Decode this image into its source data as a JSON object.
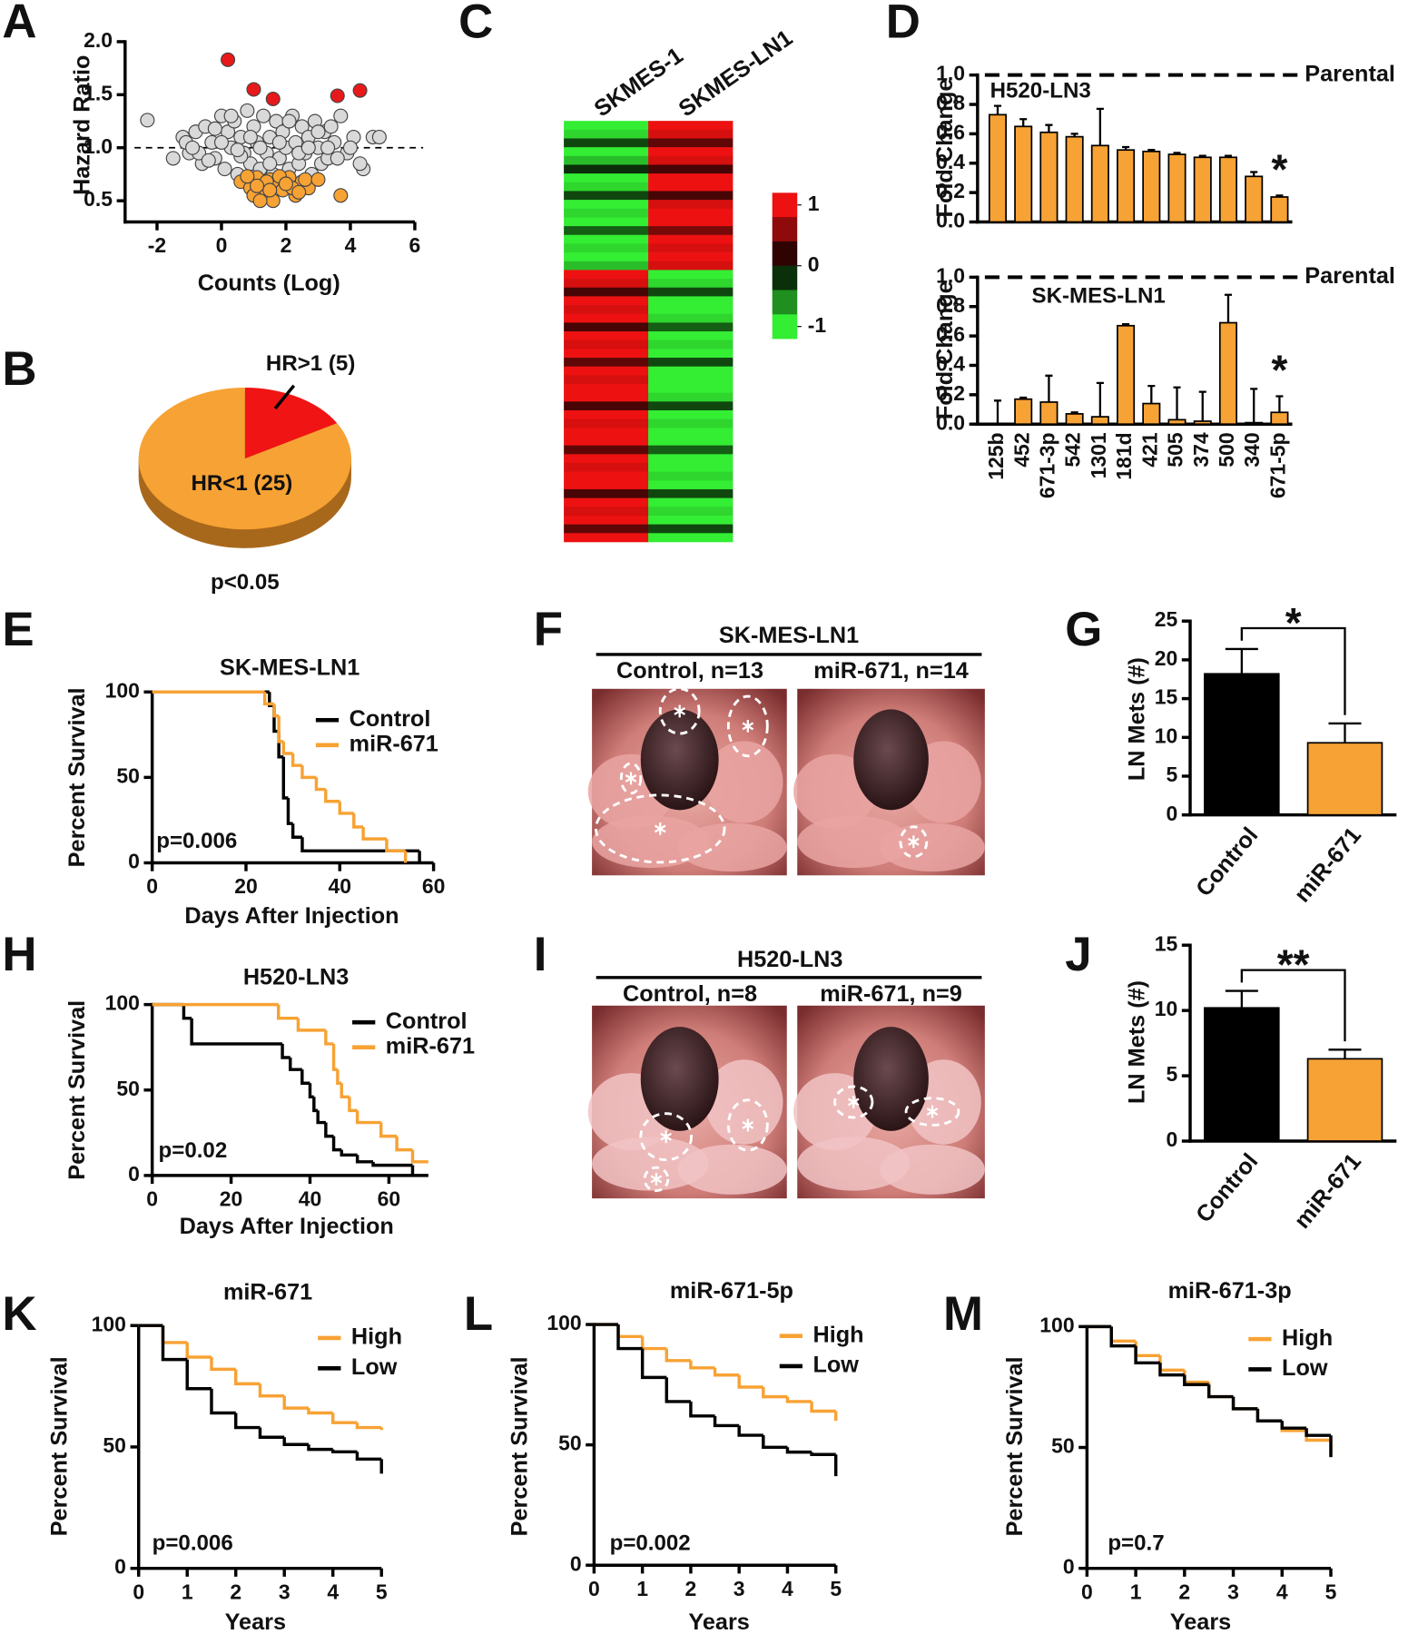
{
  "chart_data": [
    {
      "type": "scatter",
      "panel": "A",
      "xlabel": "Counts (Log)",
      "ylabel": "Hazard Ratio",
      "xlim": [
        -2.7,
        6
      ],
      "ylim": [
        0.3,
        2
      ],
      "xticks": [
        -2,
        0,
        2,
        4,
        6
      ],
      "yticks": [
        0.5,
        {
          "value": 1,
          "label": "1.0"
        },
        1.5,
        {
          "value": 2,
          "label": "2.0"
        }
      ],
      "hline": 1,
      "series": [
        {
          "color": "#d9d9d9",
          "x": [
            -2.3,
            -1.5,
            -1.2,
            -1.0,
            -0.8,
            -0.6,
            -0.5,
            -0.3,
            -0.2,
            0,
            0.1,
            0.2,
            0.3,
            0.4,
            0.5,
            0.6,
            0.7,
            0.8,
            0.9,
            1.0,
            1.1,
            1.2,
            1.3,
            1.4,
            1.5,
            1.6,
            1.7,
            1.8,
            1.9,
            2.0,
            2.1,
            2.2,
            2.3,
            2.4,
            2.5,
            2.6,
            2.7,
            2.8,
            2.9,
            3.0,
            3.1,
            3.2,
            3.3,
            3.4,
            3.5,
            3.7,
            3.9,
            4.1,
            4.4,
            4.7,
            4.9,
            -1.1,
            -0.7,
            -0.4,
            0.0,
            0.3,
            0.6,
            0.9,
            1.2,
            1.5,
            1.8,
            2.1,
            2.4,
            2.7,
            3.0,
            3.3,
            3.6,
            4.0,
            4.3,
            -0.9,
            -0.2,
            0.5
          ],
          "values": [
            1.26,
            0.9,
            1.1,
            0.95,
            1.15,
            0.85,
            1.2,
            1.05,
            0.9,
            1.3,
            0.8,
            1.15,
            1.0,
            1.25,
            0.75,
            1.1,
            0.95,
            1.35,
            0.85,
            1.2,
            1.05,
            0.8,
            1.3,
            0.95,
            1.1,
            0.75,
            1.25,
            0.9,
            1.15,
            1.0,
            0.8,
            1.3,
            1.05,
            0.85,
            1.2,
            0.95,
            1.1,
            0.75,
            1.25,
            1.0,
            0.85,
            1.15,
            0.9,
            1.2,
            1.05,
            1.3,
            0.95,
            1.1,
            0.8,
            1.1,
            1.1,
            1.05,
            0.95,
            0.88,
            1.05,
            1.3,
            0.92,
            1.1,
            1.0,
            0.85,
            1.05,
            1.25,
            0.95,
            1.0,
            1.15,
            1.0,
            0.9,
            1.0,
            0.85,
            1.0,
            1.18,
            0.98
          ]
        },
        {
          "color": "#e8191b",
          "x": [
            0.2,
            1.0,
            1.6,
            3.6,
            4.3
          ],
          "values": [
            1.83,
            1.55,
            1.46,
            1.49,
            1.54
          ]
        },
        {
          "color": "#f7a234",
          "x": [
            0.6,
            0.9,
            1.1,
            1.3,
            1.5,
            1.6,
            1.7,
            1.9,
            2.1,
            2.3,
            2.5,
            2.7,
            1.0,
            1.4,
            1.8,
            2.2,
            2.6,
            3.7,
            0.8,
            1.2,
            2.0,
            2.4,
            1.5,
            3.0,
            1.1
          ],
          "values": [
            0.68,
            0.62,
            0.72,
            0.6,
            0.7,
            0.5,
            0.65,
            0.6,
            0.72,
            0.55,
            0.68,
            0.62,
            0.55,
            0.68,
            0.73,
            0.62,
            0.7,
            0.55,
            0.73,
            0.5,
            0.66,
            0.58,
            0.6,
            0.7,
            0.64
          ]
        }
      ]
    },
    {
      "type": "pie",
      "panel": "B",
      "labels": [
        "HR>1 (5)",
        "HR<1 (25)"
      ],
      "values": [
        5,
        25
      ],
      "colors": [
        "#f01414",
        "#f7a234"
      ],
      "annotation": "p<0.05"
    },
    {
      "type": "heatmap",
      "panel": "C",
      "columns": [
        "SKMES-1",
        "SKMES-LN1"
      ],
      "colorlim": [
        -1.2,
        1.2
      ],
      "colorticks": [
        1,
        0,
        -1
      ],
      "rows": [
        [
          -1,
          1
        ],
        [
          -0.9,
          0.9
        ],
        [
          -0.3,
          0.4
        ],
        [
          -1,
          1
        ],
        [
          -0.8,
          0.9
        ],
        [
          -0.2,
          0.3
        ],
        [
          -1,
          1
        ],
        [
          -0.9,
          1
        ],
        [
          -0.3,
          0.3
        ],
        [
          -1,
          0.9
        ],
        [
          -0.9,
          1
        ],
        [
          -1,
          1
        ],
        [
          -0.4,
          0.5
        ],
        [
          -1,
          1
        ],
        [
          -0.9,
          0.9
        ],
        [
          -1,
          1
        ],
        [
          -0.8,
          0.9
        ],
        [
          1,
          -1
        ],
        [
          0.9,
          -0.9
        ],
        [
          0.3,
          -0.3
        ],
        [
          1,
          -1
        ],
        [
          0.9,
          -1
        ],
        [
          1,
          -0.9
        ],
        [
          0.3,
          -0.4
        ],
        [
          1,
          -1
        ],
        [
          0.9,
          -0.9
        ],
        [
          1,
          -1
        ],
        [
          0.4,
          -0.3
        ],
        [
          1,
          -1
        ],
        [
          0.9,
          -1
        ],
        [
          1,
          -1
        ],
        [
          1,
          -0.9
        ],
        [
          0.3,
          -0.3
        ],
        [
          1,
          -1
        ],
        [
          0.9,
          -0.9
        ],
        [
          1,
          -1
        ],
        [
          1,
          -1
        ],
        [
          0.4,
          -0.4
        ],
        [
          1,
          -1
        ],
        [
          0.9,
          -1
        ],
        [
          1,
          -0.9
        ],
        [
          1,
          -1
        ],
        [
          0.3,
          -0.3
        ],
        [
          1,
          -1
        ],
        [
          0.9,
          -0.9
        ],
        [
          1,
          -1
        ],
        [
          0.4,
          -0.3
        ],
        [
          1,
          -1
        ]
      ]
    },
    {
      "type": "bar",
      "panel": "D",
      "subtitle": "H520-LN3",
      "ylabel": "Fold Change",
      "color": "#f7a234",
      "values": [
        0.73,
        0.65,
        0.61,
        0.58,
        0.52,
        0.49,
        0.48,
        0.46,
        0.44,
        0.44,
        0.31,
        0.17
      ],
      "errors": [
        0.06,
        0.05,
        0.05,
        0.02,
        0.25,
        0.02,
        0.01,
        0.01,
        0.01,
        0.01,
        0.03,
        0.01
      ],
      "ylim": [
        0,
        1
      ],
      "yticks": [
        {
          "value": 0,
          "label": "0.0"
        },
        0.2,
        0.4,
        0.6,
        0.8,
        {
          "value": 1,
          "label": "1.0"
        }
      ],
      "reference": {
        "value": 1,
        "label": "Parental"
      },
      "annotation": "*"
    },
    {
      "type": "bar",
      "subtitle": "SK-MES-LN1",
      "ylabel": "Fold Change",
      "color": "#f7a234",
      "categories": [
        "125b",
        "452",
        "671-3p",
        "542",
        "1301",
        "181d",
        "421",
        "505",
        "374",
        "500",
        "340",
        "671-5p"
      ],
      "values": [
        0,
        0.17,
        0.15,
        0.07,
        0.05,
        0.67,
        0.14,
        0.03,
        0.02,
        0.69,
        0.01,
        0.08
      ],
      "errors": [
        0.16,
        0.01,
        0.18,
        0.01,
        0.23,
        0.01,
        0.12,
        0.22,
        0.2,
        0.19,
        0.23,
        0.11
      ],
      "ylim": [
        0,
        1
      ],
      "yticks": [
        {
          "value": 0,
          "label": "0.0"
        },
        0.2,
        0.4,
        0.6,
        0.8,
        {
          "value": 1,
          "label": "1.0"
        }
      ],
      "reference": {
        "value": 1,
        "label": "Parental"
      },
      "annotation": "*"
    },
    {
      "type": "km",
      "panel": "E",
      "title": "SK-MES-LN1",
      "xlabel": "Days After Injection",
      "ylabel": "Percent Survival",
      "xlim": [
        0,
        60
      ],
      "ylim": [
        0,
        100
      ],
      "xticks": [
        0,
        20,
        40,
        60
      ],
      "yticks": [
        0,
        50,
        100
      ],
      "annotation": "p=0.006",
      "series": [
        {
          "name": "Control",
          "color": "#000000",
          "x": [
            0,
            25,
            26,
            27,
            28,
            29,
            30,
            32,
            57
          ],
          "values": [
            100,
            92,
            77,
            62,
            38,
            23,
            15,
            7,
            0
          ]
        },
        {
          "name": "miR-671",
          "color": "#f7a234",
          "x": [
            0,
            24,
            26,
            27,
            28,
            30,
            32,
            35,
            37,
            40,
            43,
            45,
            50,
            54
          ],
          "values": [
            100,
            93,
            86,
            71,
            64,
            57,
            50,
            43,
            36,
            29,
            21,
            14,
            7,
            0
          ]
        }
      ]
    },
    {
      "type": "bar",
      "panel": "G",
      "ylabel": "LN Mets (#)",
      "categories": [
        "Control",
        "miR-671"
      ],
      "values": [
        18.2,
        9.3
      ],
      "errors": [
        3.2,
        2.5
      ],
      "colors": [
        "#000000",
        "#f7a234"
      ],
      "ylim": [
        0,
        25
      ],
      "yticks": [
        0,
        5,
        10,
        15,
        20,
        25
      ],
      "significance": "*"
    },
    {
      "type": "km",
      "panel": "H",
      "title": "H520-LN3",
      "xlabel": "Days After Injection",
      "ylabel": "Percent Survival",
      "xlim": [
        0,
        70
      ],
      "ylim": [
        0,
        100
      ],
      "xticks": [
        0,
        20,
        40,
        60
      ],
      "yticks": [
        0,
        50,
        100
      ],
      "annotation": "p=0.02",
      "series": [
        {
          "name": "Control",
          "color": "#000000",
          "x": [
            0,
            8,
            10,
            33,
            35,
            38,
            40,
            41,
            42,
            44,
            46,
            48,
            52,
            56,
            66
          ],
          "values": [
            100,
            92,
            77,
            69,
            62,
            54,
            46,
            38,
            31,
            23,
            15,
            12,
            8,
            6,
            0
          ]
        },
        {
          "name": "miR-671",
          "color": "#f7a234",
          "x": [
            0,
            32,
            37,
            44,
            46,
            47,
            48,
            50,
            52,
            58,
            62,
            66,
            70
          ],
          "values": [
            100,
            92,
            85,
            77,
            62,
            54,
            46,
            38,
            31,
            23,
            15,
            8,
            8
          ]
        }
      ]
    },
    {
      "type": "bar",
      "panel": "J",
      "ylabel": "LN Mets (#)",
      "categories": [
        "Control",
        "miR-671"
      ],
      "values": [
        10.2,
        6.3
      ],
      "errors": [
        1.3,
        0.7
      ],
      "colors": [
        "#000000",
        "#f7a234"
      ],
      "ylim": [
        0,
        15
      ],
      "yticks": [
        0,
        5,
        10,
        15
      ],
      "significance": "**"
    },
    {
      "type": "km",
      "panel": "K",
      "title": "miR-671",
      "xlabel": "Years",
      "ylabel": "Percent Survival",
      "xlim": [
        0,
        5
      ],
      "ylim": [
        0,
        100
      ],
      "xticks": [
        0,
        1,
        2,
        3,
        4,
        5
      ],
      "yticks": [
        0,
        50,
        100
      ],
      "annotation": "p=0.006",
      "series": [
        {
          "name": "High",
          "color": "#f7a234",
          "x": [
            0,
            0.5,
            1,
            1.5,
            2,
            2.5,
            3,
            3.5,
            4,
            4.5,
            5
          ],
          "values": [
            100,
            93,
            87,
            82,
            76,
            71,
            66,
            64,
            60,
            58,
            57
          ]
        },
        {
          "name": "Low",
          "color": "#000000",
          "x": [
            0,
            0.5,
            1,
            1.5,
            2,
            2.5,
            3,
            3.5,
            4,
            4.5,
            5
          ],
          "values": [
            100,
            86,
            74,
            64,
            58,
            54,
            51,
            49,
            48,
            45,
            39
          ]
        }
      ]
    },
    {
      "type": "km",
      "panel": "L",
      "title": "miR-671-5p",
      "xlabel": "Years",
      "ylabel": "Percent Survival",
      "xlim": [
        0,
        5
      ],
      "ylim": [
        0,
        100
      ],
      "xticks": [
        0,
        1,
        2,
        3,
        4,
        5
      ],
      "yticks": [
        0,
        50,
        100
      ],
      "annotation": "p=0.002",
      "series": [
        {
          "name": "High",
          "color": "#f7a234",
          "x": [
            0,
            0.5,
            1,
            1.5,
            2,
            2.5,
            3,
            3.5,
            4,
            4.5,
            5
          ],
          "values": [
            100,
            95,
            90,
            85,
            82,
            79,
            74,
            70,
            68,
            64,
            60
          ]
        },
        {
          "name": "Low",
          "color": "#000000",
          "x": [
            0,
            0.5,
            1,
            1.5,
            2,
            2.5,
            3,
            3.5,
            4,
            4.5,
            5
          ],
          "values": [
            100,
            90,
            78,
            68,
            62,
            58,
            54,
            49,
            47,
            46,
            37
          ]
        }
      ]
    },
    {
      "type": "km",
      "panel": "M",
      "title": "miR-671-3p",
      "xlabel": "Years",
      "ylabel": "Percent Survival",
      "xlim": [
        0,
        5
      ],
      "ylim": [
        0,
        100
      ],
      "xticks": [
        0,
        1,
        2,
        3,
        4,
        5
      ],
      "yticks": [
        0,
        50,
        100
      ],
      "annotation": "p=0.7",
      "series": [
        {
          "name": "High",
          "color": "#f7a234",
          "x": [
            0,
            0.5,
            1,
            1.5,
            2,
            2.5,
            3,
            3.5,
            4,
            4.5,
            5
          ],
          "values": [
            100,
            94,
            88,
            82,
            77,
            71,
            66,
            61,
            57,
            53,
            47
          ]
        },
        {
          "name": "Low",
          "color": "#000000",
          "x": [
            0,
            0.5,
            1,
            1.5,
            2,
            2.5,
            3,
            3.5,
            4,
            4.5,
            5
          ],
          "values": [
            100,
            92,
            85,
            80,
            76,
            71,
            66,
            61,
            58,
            55,
            46
          ]
        }
      ]
    }
  ],
  "image_panels": [
    {
      "panel": "F",
      "title": "SK-MES-LN1",
      "labels": [
        "Control, n=13",
        "miR-671, n=14"
      ]
    },
    {
      "panel": "I",
      "title": "H520-LN3",
      "labels": [
        "Control, n=8",
        "miR-671, n=9"
      ]
    }
  ]
}
